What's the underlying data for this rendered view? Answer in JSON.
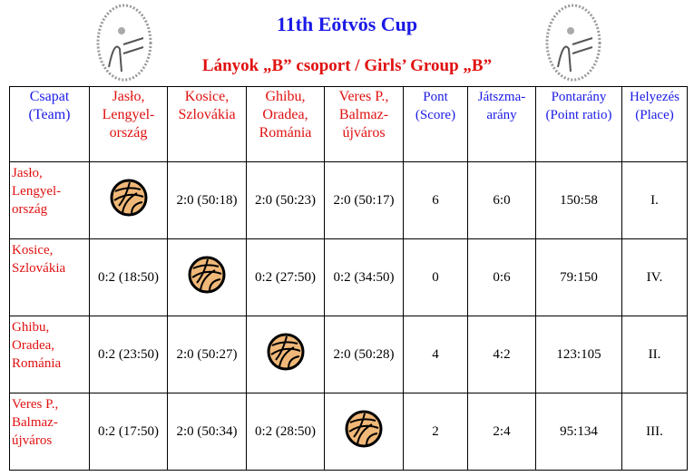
{
  "title": "11th Eötvös Cup",
  "subtitle": "Lányok „B” csoport / Girls’ Group „B”",
  "logo_text": "Nemzetközi Röplabda Torna Eötvös Kupa 2007 Balmazújváros, Debrecen",
  "headers": [
    "Csapat (Team)",
    "Jasło, Lengyel-ország",
    "Kosice, Szlovákia",
    "Ghibu, Oradea, Románia",
    "Veres P., Balmaz-újváros",
    "Pont (Score)",
    "Játszma-arány",
    "Pontarány (Point ratio)",
    "Helyezés (Place)"
  ],
  "rows": [
    {
      "team": "Jasło, Lengyel-ország",
      "results": [
        "",
        "2:0 (50:18)",
        "2:0 (50:23)",
        "2:0 (50:17)"
      ],
      "score": "6",
      "sets": "6:0",
      "points": "150:58",
      "place": "I."
    },
    {
      "team": "Kosice, Szlovákia",
      "results": [
        "0:2 (18:50)",
        "",
        "0:2 (27:50)",
        "0:2 (34:50)"
      ],
      "score": "0",
      "sets": "0:6",
      "points": "79:150",
      "place": "IV."
    },
    {
      "team": "Ghibu, Oradea, Románia",
      "results": [
        "0:2 (23:50)",
        "2:0 (50:27)",
        "",
        "2:0 (50:28)"
      ],
      "score": "4",
      "sets": "4:2",
      "points": "123:105",
      "place": "II."
    },
    {
      "team": "Veres P., Balmaz-újváros",
      "results": [
        "0:2 (17:50)",
        "2:0 (50:34)",
        "0:2 (28:50)",
        ""
      ],
      "score": "2",
      "sets": "2:4",
      "points": "95:134",
      "place": "III."
    }
  ],
  "colors": {
    "blue": "#1a1ae6",
    "red": "#e01010",
    "ball": "#f0b878"
  }
}
